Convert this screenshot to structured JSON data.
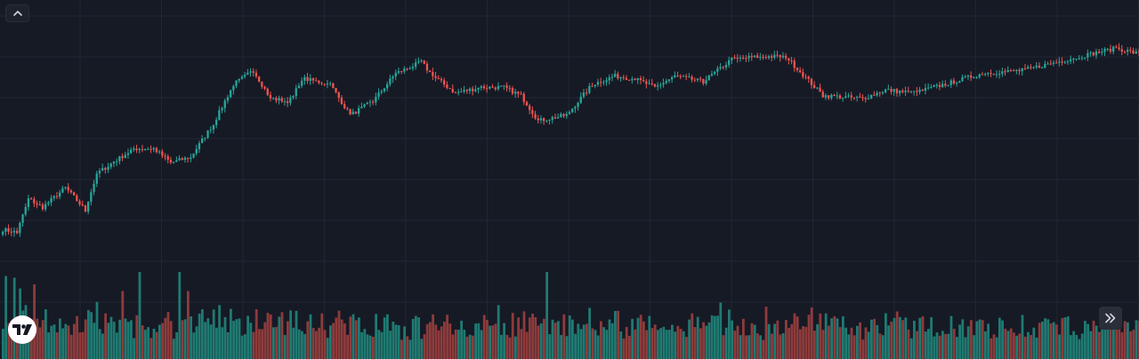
{
  "colors": {
    "background": "#161a25",
    "grid": "#222633",
    "up": "#26a69a",
    "down": "#ef5350",
    "up_volume": "#1f7a72",
    "down_volume": "#8f3b3b"
  },
  "controls": {
    "collapse_icon": "chevron-up-icon",
    "scroll_icon": "double-chevron-right-icon",
    "logo_icon": "tradingview-logo-icon"
  },
  "chart_data": {
    "type": "candlestick",
    "grid": true,
    "price_range": [
      0,
      100
    ],
    "volume_range": [
      0,
      120
    ],
    "up_color": "#26a69a",
    "down_color": "#ef5350",
    "anchors": [
      [
        0,
        19,
        1
      ],
      [
        5,
        18,
        1
      ],
      [
        9,
        30,
        1
      ],
      [
        14,
        27,
        1
      ],
      [
        22,
        34,
        1
      ],
      [
        29,
        26,
        1
      ],
      [
        33,
        39,
        1
      ],
      [
        40,
        44,
        1
      ],
      [
        46,
        48,
        1
      ],
      [
        53,
        48,
        1
      ],
      [
        59,
        43,
        1
      ],
      [
        66,
        45,
        1
      ],
      [
        74,
        57,
        0
      ],
      [
        81,
        71,
        1
      ],
      [
        88,
        76,
        1
      ],
      [
        94,
        66,
        0
      ],
      [
        100,
        65,
        1
      ],
      [
        106,
        73,
        1
      ],
      [
        115,
        71,
        1
      ],
      [
        122,
        60,
        0
      ],
      [
        130,
        65,
        1
      ],
      [
        138,
        75,
        1
      ],
      [
        147,
        79,
        1
      ],
      [
        151,
        74,
        0
      ],
      [
        159,
        68,
        0
      ],
      [
        168,
        70,
        1
      ],
      [
        176,
        70,
        1
      ],
      [
        182,
        67,
        0
      ],
      [
        188,
        58,
        0
      ],
      [
        198,
        60,
        1
      ],
      [
        207,
        71,
        1
      ],
      [
        215,
        74,
        1
      ],
      [
        222,
        73,
        0
      ],
      [
        229,
        70,
        0
      ],
      [
        236,
        74,
        0
      ],
      [
        246,
        72,
        1
      ],
      [
        256,
        80,
        1
      ],
      [
        266,
        81,
        1
      ],
      [
        275,
        81,
        0
      ],
      [
        288,
        67,
        0
      ],
      [
        302,
        66,
        1
      ],
      [
        310,
        69,
        0
      ],
      [
        320,
        68,
        1
      ],
      [
        334,
        72,
        1
      ],
      [
        344,
        75,
        1
      ],
      [
        358,
        76,
        1
      ],
      [
        378,
        81,
        1
      ],
      [
        391,
        84,
        1
      ],
      [
        399,
        82,
        0
      ]
    ],
    "volume_spikes": {
      "1": 100,
      "4": 98,
      "6": 85,
      "8": 65,
      "11": 90,
      "15": 60,
      "36": 55,
      "42": 82,
      "48": 105,
      "62": 105,
      "65": 82,
      "70": 60,
      "76": 65,
      "89": 60,
      "112": 55,
      "174": 65,
      "191": 105,
      "215": 58,
      "227": 52,
      "242": 55,
      "252": 68,
      "268": 63,
      "278": 55,
      "289": 55
    }
  }
}
